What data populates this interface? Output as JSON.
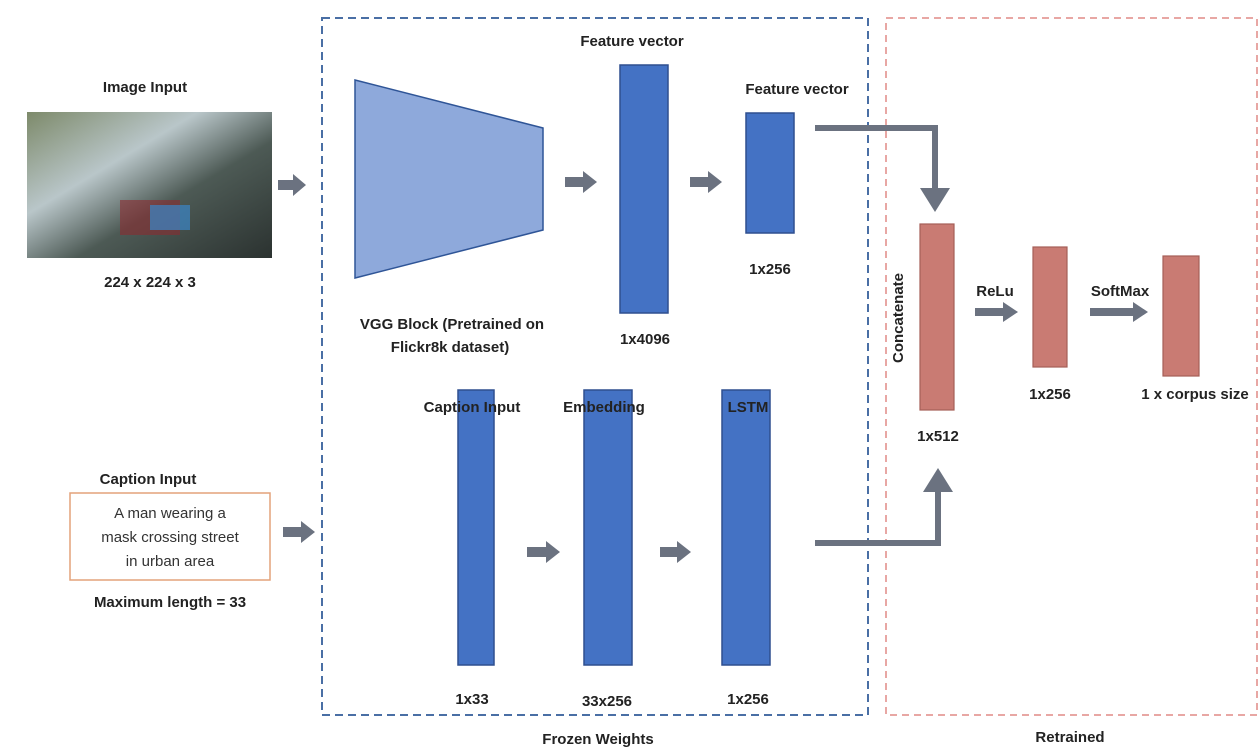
{
  "image_input": {
    "title": "Image Input",
    "size": "224 x 224 x 3"
  },
  "caption_input": {
    "title": "Caption Input",
    "caption": [
      "A man wearing a",
      "mask crossing street",
      "in urban area"
    ],
    "max_length": "Maximum length = 33"
  },
  "frozen": {
    "title": "Frozen Weights",
    "feature_vector_top": "Feature vector",
    "feature_vector": "Feature vector",
    "vgg": [
      "VGG Block (Pretrained on",
      "Flickr8k dataset)"
    ],
    "dim_4096": "1x4096",
    "dim_256_feature": "1x256",
    "caption_input": "Caption Input",
    "embedding": "Embedding",
    "lstm": "LSTM",
    "dim_33": "1x33",
    "dim_33x256": "33x256",
    "dim_256_lstm": "1x256"
  },
  "retrained": {
    "title": "Retrained",
    "concatenate": "Concatenate",
    "relu": "ReLu",
    "softmax": "SoftMax",
    "dim_512": "1x512",
    "dim_256": "1x256",
    "corpus": "1 x corpus size"
  }
}
